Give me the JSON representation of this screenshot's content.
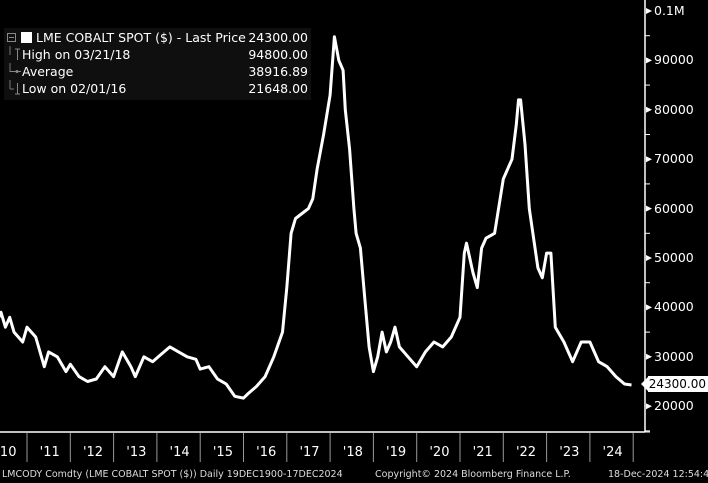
{
  "legend": {
    "title": "LME COBALT SPOT ($) - Last Price",
    "last_price": "24300.00",
    "rows": [
      {
        "label": "High on 03/21/18",
        "value": "94800.00"
      },
      {
        "label": "Average",
        "value": "38916.89"
      },
      {
        "label": "Low on 02/01/16",
        "value": "21648.00"
      }
    ]
  },
  "y_axis": {
    "ticks": [
      "0.1M",
      "90000",
      "80000",
      "70000",
      "60000",
      "50000",
      "40000",
      "30000",
      "20000"
    ],
    "last_value_label": "24300.00"
  },
  "x_axis": {
    "ticks": [
      "'10",
      "'11",
      "'12",
      "'13",
      "'14",
      "'15",
      "'16",
      "'17",
      "'18",
      "'19",
      "'20",
      "'21",
      "'22",
      "'23",
      "'24"
    ]
  },
  "footer": {
    "source": "LMCODY Comdty (LME COBALT   SPOT ($))  Daily 19DEC1900-17DEC2024",
    "copyright": "Copyright© 2024 Bloomberg Finance L.P.",
    "timestamp": "18-Dec-2024 12:54:47"
  },
  "colors": {
    "background": "#000000",
    "line": "#ffffff",
    "legend_bg": "#0f0f0f"
  },
  "chart_data": {
    "type": "line",
    "title": "LME COBALT SPOT ($) - Last Price",
    "xlabel": "",
    "ylabel": "",
    "ylim": [
      15000,
      100000
    ],
    "grid": false,
    "legend_position": "top-left",
    "series": [
      {
        "name": "LME COBALT SPOT ($)",
        "x": [
          2010.0,
          2010.1,
          2010.2,
          2010.3,
          2010.4,
          2010.5,
          2010.6,
          2010.7,
          2010.8,
          2010.9,
          2011.0,
          2011.2,
          2011.4,
          2011.5,
          2011.7,
          2011.9,
          2012.0,
          2012.2,
          2012.4,
          2012.6,
          2012.8,
          2013.0,
          2013.2,
          2013.4,
          2013.5,
          2013.7,
          2013.9,
          2014.1,
          2014.3,
          2014.5,
          2014.7,
          2014.9,
          2015.0,
          2015.2,
          2015.4,
          2015.6,
          2015.8,
          2016.0,
          2016.1,
          2016.3,
          2016.5,
          2016.7,
          2016.9,
          2017.0,
          2017.1,
          2017.2,
          2017.35,
          2017.5,
          2017.6,
          2017.7,
          2017.85,
          2018.0,
          2018.1,
          2018.2,
          2018.3,
          2018.35,
          2018.45,
          2018.55,
          2018.6,
          2018.7,
          2018.8,
          2018.9,
          2019.0,
          2019.1,
          2019.2,
          2019.3,
          2019.4,
          2019.5,
          2019.6,
          2019.8,
          2020.0,
          2020.2,
          2020.4,
          2020.6,
          2020.8,
          2021.0,
          2021.1,
          2021.15,
          2021.3,
          2021.4,
          2021.5,
          2021.6,
          2021.8,
          2022.0,
          2022.05,
          2022.2,
          2022.3,
          2022.35,
          2022.4,
          2022.5,
          2022.6,
          2022.8,
          2022.9,
          2023.0,
          2023.05,
          2023.1,
          2023.2,
          2023.4,
          2023.6,
          2023.8,
          2024.0,
          2024.2,
          2024.4,
          2024.6,
          2024.8,
          2024.96
        ],
        "values": [
          40000,
          38000,
          42000,
          37000,
          39000,
          36000,
          38000,
          35000,
          34000,
          33000,
          36000,
          34000,
          28000,
          31000,
          30000,
          27000,
          28500,
          26000,
          25000,
          25500,
          28000,
          26000,
          31000,
          28000,
          26000,
          30000,
          29000,
          30500,
          32000,
          31000,
          30000,
          29500,
          27500,
          28000,
          25500,
          24500,
          22000,
          21648,
          22500,
          24000,
          26000,
          30000,
          35000,
          44000,
          55000,
          58000,
          59000,
          60000,
          62000,
          68000,
          75000,
          83000,
          94800,
          90000,
          88000,
          80000,
          72000,
          60000,
          55000,
          52000,
          42000,
          32000,
          27000,
          30000,
          35000,
          31000,
          33000,
          36000,
          32000,
          30000,
          28000,
          31000,
          33000,
          32000,
          34000,
          38000,
          51000,
          53000,
          47000,
          44000,
          52000,
          54000,
          55000,
          66000,
          67000,
          70000,
          77000,
          82000,
          82000,
          73000,
          60000,
          48000,
          46000,
          51000,
          51000,
          51000,
          36000,
          33000,
          29000,
          33000,
          33000,
          29000,
          28000,
          26000,
          24500,
          24300
        ]
      }
    ],
    "summary": {
      "last_price": 24300.0,
      "high": 94800.0,
      "high_date": "03/21/18",
      "average": 38916.89,
      "low": 21648.0,
      "low_date": "02/01/16"
    }
  }
}
